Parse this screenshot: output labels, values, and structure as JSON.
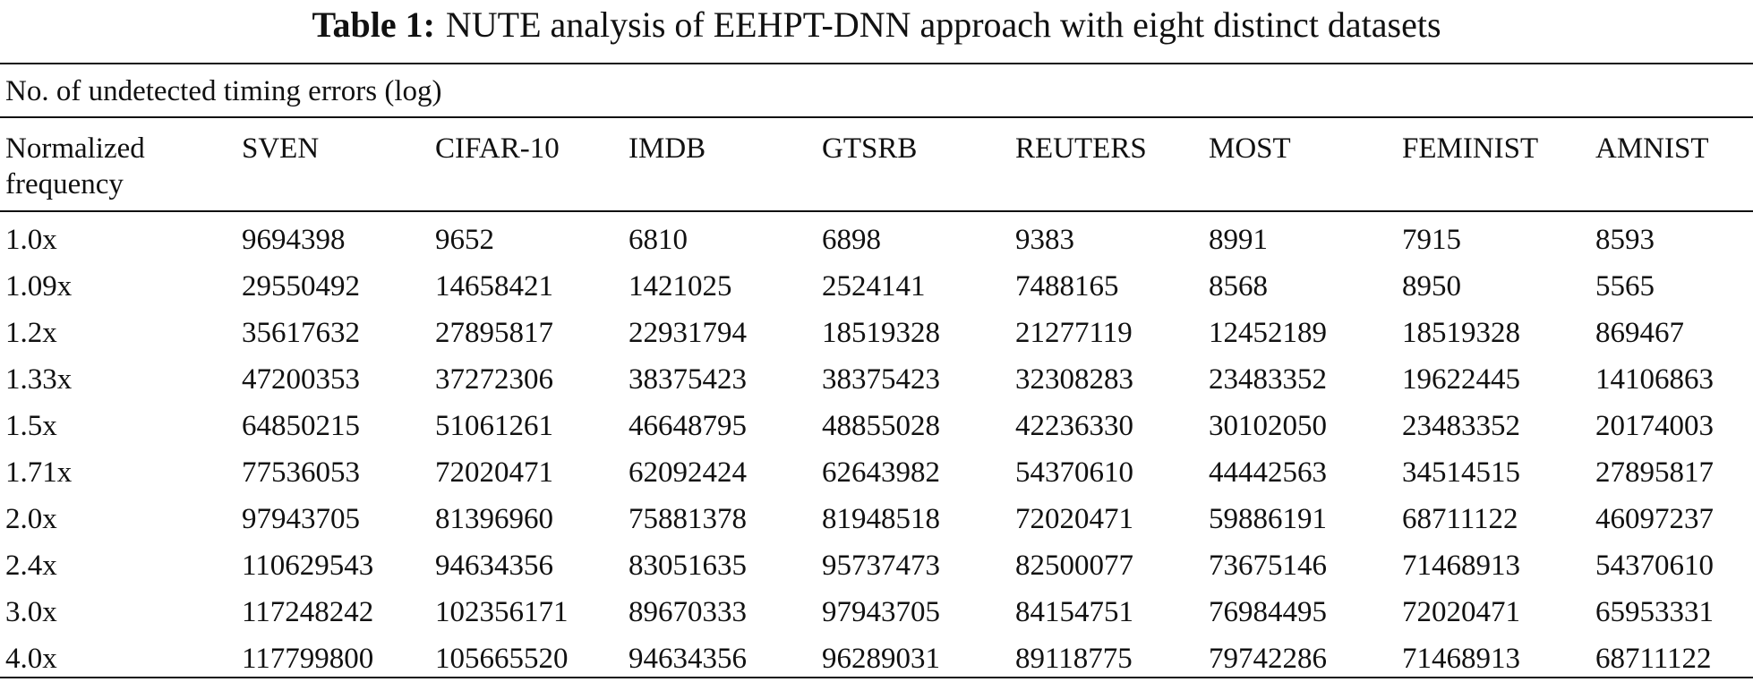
{
  "caption": {
    "label": "Table 1:",
    "text": "NUTE analysis of EEHPT-DNN approach with eight distinct datasets"
  },
  "group_title": "No. of undetected timing errors (log)",
  "columns": [
    "Normalized frequency",
    "SVEN",
    "CIFAR-10",
    "IMDB",
    "GTSRB",
    "REUTERS",
    "MOST",
    "FEMINIST",
    "AMNIST"
  ],
  "rows": [
    [
      "1.0x",
      "9694398",
      "9652",
      "6810",
      "6898",
      "9383",
      "8991",
      "7915",
      "8593"
    ],
    [
      "1.09x",
      "29550492",
      "14658421",
      "1421025",
      "2524141",
      "7488165",
      "8568",
      "8950",
      "5565"
    ],
    [
      "1.2x",
      "35617632",
      "27895817",
      "22931794",
      "18519328",
      "21277119",
      "12452189",
      "18519328",
      "869467"
    ],
    [
      "1.33x",
      "47200353",
      "37272306",
      "38375423",
      "38375423",
      "32308283",
      "23483352",
      "19622445",
      "14106863"
    ],
    [
      "1.5x",
      "64850215",
      "51061261",
      "46648795",
      "48855028",
      "42236330",
      "30102050",
      "23483352",
      "20174003"
    ],
    [
      "1.71x",
      "77536053",
      "72020471",
      "62092424",
      "62643982",
      "54370610",
      "44442563",
      "34514515",
      "27895817"
    ],
    [
      "2.0x",
      "97943705",
      "81396960",
      "75881378",
      "81948518",
      "72020471",
      "59886191",
      "68711122",
      "46097237"
    ],
    [
      "2.4x",
      "110629543",
      "94634356",
      "83051635",
      "95737473",
      "82500077",
      "73675146",
      "71468913",
      "54370610"
    ],
    [
      "3.0x",
      "117248242",
      "102356171",
      "89670333",
      "97943705",
      "84154751",
      "76984495",
      "72020471",
      "65953331"
    ],
    [
      "4.0x",
      "117799800",
      "105665520",
      "94634356",
      "96289031",
      "89118775",
      "79742286",
      "71468913",
      "68711122"
    ]
  ]
}
